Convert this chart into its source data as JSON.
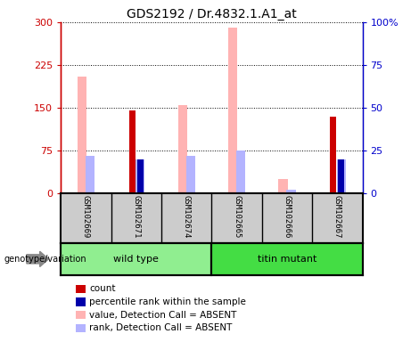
{
  "title": "GDS2192 / Dr.4832.1.A1_at",
  "samples": [
    "GSM102669",
    "GSM102671",
    "GSM102674",
    "GSM102665",
    "GSM102666",
    "GSM102667"
  ],
  "groups": [
    {
      "name": "wild type",
      "indices": [
        0,
        1,
        2
      ],
      "color": "#90ee90"
    },
    {
      "name": "titin mutant",
      "indices": [
        3,
        4,
        5
      ],
      "color": "#44dd44"
    }
  ],
  "count_values": [
    0,
    145,
    0,
    0,
    0,
    135
  ],
  "percentile_values": [
    0,
    20,
    0,
    0,
    0,
    20
  ],
  "absent_value_values": [
    205,
    0,
    155,
    290,
    25,
    0
  ],
  "absent_rank_values": [
    22,
    20,
    22,
    25,
    2,
    20
  ],
  "bar_colors": {
    "count": "#cc0000",
    "percentile": "#0000aa",
    "absent_value": "#ffb3b3",
    "absent_rank": "#b3b3ff"
  },
  "ylim_left": [
    0,
    300
  ],
  "ylim_right": [
    0,
    100
  ],
  "yticks_left": [
    0,
    75,
    150,
    225,
    300
  ],
  "yticks_right": [
    0,
    25,
    50,
    75,
    100
  ],
  "ytick_labels_left": [
    "0",
    "75",
    "150",
    "225",
    "300"
  ],
  "ytick_labels_right": [
    "0",
    "25",
    "50",
    "75",
    "100%"
  ],
  "left_axis_color": "#cc0000",
  "right_axis_color": "#0000cc",
  "sample_label_bg": "#cccccc",
  "genotype_label": "genotype/variation",
  "legend": [
    {
      "label": "count",
      "color": "#cc0000"
    },
    {
      "label": "percentile rank within the sample",
      "color": "#0000aa"
    },
    {
      "label": "value, Detection Call = ABSENT",
      "color": "#ffb3b3"
    },
    {
      "label": "rank, Detection Call = ABSENT",
      "color": "#b3b3ff"
    }
  ]
}
